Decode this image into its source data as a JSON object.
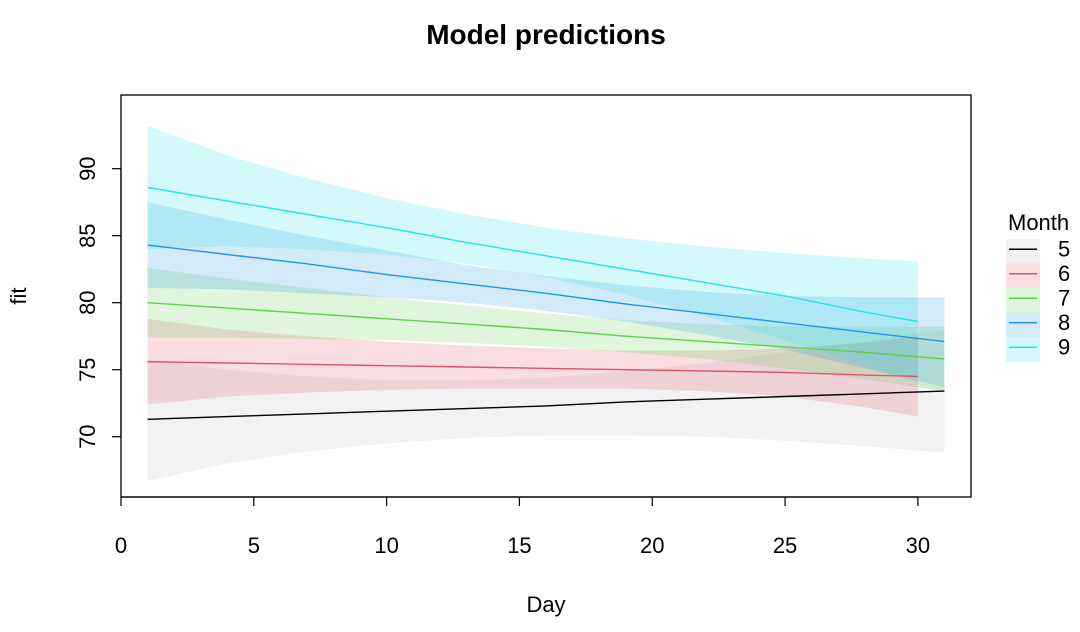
{
  "chart_data": {
    "type": "line",
    "title": "Model predictions",
    "xlabel": "Day",
    "ylabel": "fit",
    "xlim": [
      0,
      32
    ],
    "ylim": [
      65.5,
      95.5
    ],
    "xticks": [
      0,
      5,
      10,
      15,
      20,
      25,
      30
    ],
    "yticks": [
      70,
      75,
      80,
      85,
      90
    ],
    "legend": {
      "title": "Month",
      "position": "right"
    },
    "series": [
      {
        "name": "5",
        "color": "#000000",
        "band_color": "#bebebe",
        "x": [
          1,
          4,
          7,
          10,
          13,
          16,
          19,
          22,
          25,
          28,
          31
        ],
        "fit": [
          71.3,
          71.5,
          71.7,
          71.9,
          72.1,
          72.3,
          72.6,
          72.8,
          73.0,
          73.2,
          73.4
        ],
        "lower": [
          66.7,
          68.0,
          68.9,
          69.5,
          69.9,
          70.1,
          70.1,
          70.0,
          69.7,
          69.3,
          68.8
        ],
        "upper": [
          75.8,
          75.0,
          74.5,
          74.2,
          74.2,
          74.4,
          74.9,
          75.5,
          76.3,
          77.1,
          78.0
        ]
      },
      {
        "name": "6",
        "color": "#df536b",
        "band_color": "#df536b",
        "x": [
          1,
          4,
          7,
          10,
          13,
          16,
          19,
          22,
          25,
          28,
          30
        ],
        "fit": [
          75.6,
          75.5,
          75.4,
          75.3,
          75.2,
          75.1,
          75.0,
          74.9,
          74.8,
          74.6,
          74.5
        ],
        "lower": [
          72.4,
          73.0,
          73.3,
          73.5,
          73.6,
          73.6,
          73.6,
          73.4,
          73.0,
          72.2,
          71.5
        ],
        "upper": [
          78.8,
          78.0,
          77.5,
          77.1,
          76.8,
          76.6,
          76.4,
          76.4,
          76.6,
          77.0,
          77.5
        ]
      },
      {
        "name": "7",
        "color": "#61d04f",
        "band_color": "#61d04f",
        "x": [
          1,
          4,
          7,
          10,
          13,
          16,
          19,
          22,
          25,
          28,
          31
        ],
        "fit": [
          80.0,
          79.6,
          79.2,
          78.8,
          78.4,
          78.0,
          77.5,
          77.1,
          76.7,
          76.3,
          75.8
        ],
        "lower": [
          77.4,
          77.4,
          77.3,
          77.2,
          77.0,
          76.7,
          76.3,
          75.8,
          75.1,
          74.3,
          73.4
        ],
        "upper": [
          82.6,
          81.8,
          81.1,
          80.4,
          79.8,
          79.2,
          78.7,
          78.4,
          78.2,
          78.2,
          78.2
        ]
      },
      {
        "name": "8",
        "color": "#2297e6",
        "band_color": "#2297e6",
        "x": [
          1,
          4,
          7,
          10,
          13,
          16,
          19,
          22,
          25,
          28,
          31
        ],
        "fit": [
          84.3,
          83.6,
          82.9,
          82.1,
          81.4,
          80.7,
          79.9,
          79.2,
          78.5,
          77.8,
          77.1
        ],
        "lower": [
          81.1,
          81.0,
          80.7,
          80.4,
          80.0,
          79.4,
          78.6,
          77.6,
          76.5,
          75.1,
          73.7
        ],
        "upper": [
          87.5,
          86.2,
          85.0,
          83.9,
          82.8,
          82.0,
          81.3,
          80.8,
          80.5,
          80.4,
          80.4
        ]
      },
      {
        "name": "9",
        "color": "#28e2e5",
        "band_color": "#28e2e5",
        "x": [
          1,
          4,
          7,
          10,
          13,
          16,
          19,
          22,
          25,
          28,
          30
        ],
        "fit": [
          88.6,
          87.6,
          86.6,
          85.6,
          84.5,
          83.5,
          82.5,
          81.5,
          80.5,
          79.3,
          78.6
        ],
        "lower": [
          84.0,
          84.2,
          84.0,
          83.6,
          82.9,
          81.9,
          80.6,
          79.0,
          77.2,
          75.3,
          74.0
        ],
        "upper": [
          93.2,
          91.0,
          89.3,
          87.8,
          86.6,
          85.6,
          84.8,
          84.2,
          83.7,
          83.3,
          83.1
        ]
      }
    ]
  }
}
